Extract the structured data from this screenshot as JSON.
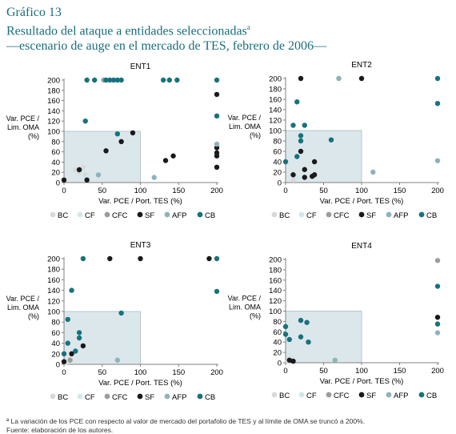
{
  "figure_label": "Gráfico 13",
  "title_line1": "Resultado del ataque a entidades seleccionadas",
  "title_mark": "a",
  "title_line2": "—escenario de auge en el mercado de TES, febrero de 2006—",
  "footnote": "ª La variación de los PCE con respecto al valor de mercado del portafolio de TES y al límite de OMA se truncó a 200%.",
  "source": "Fuente: elaboración de los autores.",
  "colors": {
    "BC": "#d9d9d9",
    "CF": "#cfe8ea",
    "CFC": "#9c9c9c",
    "SF": "#1a1a1a",
    "AFP": "#8fb3bd",
    "CB": "#16737d",
    "region": "#dce7ec",
    "axis": "#808080"
  },
  "chart_data": [
    {
      "type": "scatter",
      "title": "ENT1",
      "xlabel": "Var. PCE / Port. TES (%)",
      "ylabel": [
        "Var. PCE /",
        "Lim. OMA",
        "(%)"
      ],
      "xticks": [
        0,
        50,
        100,
        150,
        200
      ],
      "yticks": [
        0,
        20,
        40,
        60,
        80,
        100,
        120,
        140,
        160,
        180,
        200
      ],
      "xlim": [
        0,
        200
      ],
      "ylim": [
        0,
        200
      ],
      "shaded_region": {
        "x": [
          0,
          100
        ],
        "y": [
          0,
          100
        ]
      },
      "legend": [
        "BC",
        "CF",
        "CFC",
        "SF",
        "AFP",
        "CB"
      ],
      "series": [
        {
          "name": "BC",
          "points": [
            [
              15,
              25
            ],
            [
              20,
              20
            ],
            [
              25,
              30
            ],
            [
              28,
              15
            ]
          ]
        },
        {
          "name": "CF",
          "points": [
            [
              22,
              22
            ],
            [
              32,
              12
            ]
          ]
        },
        {
          "name": "CFC",
          "points": [
            [
              52,
              200
            ]
          ]
        },
        {
          "name": "SF",
          "points": [
            [
              0,
              5
            ],
            [
              20,
              25
            ],
            [
              30,
              5
            ],
            [
              55,
              62
            ],
            [
              75,
              80
            ],
            [
              90,
              97
            ],
            [
              133,
              43
            ],
            [
              143,
              52
            ],
            [
              200,
              172
            ],
            [
              200,
              68
            ],
            [
              200,
              58
            ],
            [
              200,
              52
            ],
            [
              200,
              30
            ]
          ]
        },
        {
          "name": "AFP",
          "points": [
            [
              45,
              15
            ],
            [
              118,
              10
            ],
            [
              200,
              75
            ]
          ]
        },
        {
          "name": "CB",
          "points": [
            [
              28,
              120
            ],
            [
              30,
              200
            ],
            [
              40,
              200
            ],
            [
              55,
              200
            ],
            [
              60,
              200
            ],
            [
              65,
              200
            ],
            [
              70,
              200
            ],
            [
              75,
              200
            ],
            [
              70,
              95
            ],
            [
              130,
              200
            ],
            [
              138,
              200
            ],
            [
              148,
              200
            ],
            [
              200,
              200
            ],
            [
              200,
              130
            ]
          ]
        }
      ]
    },
    {
      "type": "scatter",
      "title": "ENT2",
      "xlabel": "Var. PCE / Port. TES (%)",
      "ylabel": [
        "Var. PCE /",
        "Lim. OMA",
        "(%)"
      ],
      "xticks": [
        0,
        50,
        100,
        150,
        200
      ],
      "yticks": [
        0,
        20,
        40,
        60,
        80,
        100,
        120,
        140,
        160,
        180,
        200
      ],
      "xlim": [
        0,
        200
      ],
      "ylim": [
        0,
        200
      ],
      "shaded_region": {
        "x": [
          0,
          100
        ],
        "y": [
          0,
          100
        ]
      },
      "legend": [
        "BC",
        "CF",
        "CFC",
        "SF",
        "AFP",
        "CB"
      ],
      "series": [
        {
          "name": "BC",
          "points": [
            [
              10,
              5
            ]
          ]
        },
        {
          "name": "CF",
          "points": [
            [
              15,
              10
            ]
          ]
        },
        {
          "name": "CFC",
          "points": [
            [
              70,
              200
            ]
          ]
        },
        {
          "name": "SF",
          "points": [
            [
              10,
              15
            ],
            [
              20,
              200
            ],
            [
              20,
              60
            ],
            [
              25,
              10
            ],
            [
              25,
              25
            ],
            [
              35,
              12
            ],
            [
              38,
              15
            ],
            [
              38,
              40
            ],
            [
              100,
              200
            ]
          ]
        },
        {
          "name": "AFP",
          "points": [
            [
              70,
              200
            ],
            [
              115,
              20
            ],
            [
              200,
              42
            ]
          ]
        },
        {
          "name": "CB",
          "points": [
            [
              0,
              40
            ],
            [
              10,
              110
            ],
            [
              15,
              155
            ],
            [
              20,
              80
            ],
            [
              20,
              90
            ],
            [
              25,
              110
            ],
            [
              15,
              50
            ],
            [
              60,
              82
            ],
            [
              200,
              200
            ],
            [
              200,
              152
            ]
          ]
        }
      ]
    },
    {
      "type": "scatter",
      "title": "ENT3",
      "xlabel": "Var. PCE / Port. TES (%)",
      "ylabel": [
        "Var. PCE /",
        "Lim. OMA",
        "(%)"
      ],
      "xticks": [
        0,
        50,
        100,
        150,
        200
      ],
      "yticks": [
        0,
        20,
        40,
        60,
        80,
        100,
        120,
        140,
        160,
        180,
        200
      ],
      "xlim": [
        0,
        200
      ],
      "ylim": [
        0,
        200
      ],
      "shaded_region": {
        "x": [
          0,
          100
        ],
        "y": [
          0,
          100
        ]
      },
      "legend": [
        "BC",
        "CF",
        "CFC",
        "SF",
        "AFP",
        "CB"
      ],
      "series": [
        {
          "name": "BC",
          "points": [
            [
              2,
              3
            ]
          ]
        },
        {
          "name": "CF",
          "points": [
            [
              5,
              5
            ]
          ]
        },
        {
          "name": "CFC",
          "points": [
            [
              8,
              8
            ]
          ]
        },
        {
          "name": "SF",
          "points": [
            [
              0,
              5
            ],
            [
              10,
              20
            ],
            [
              25,
              35
            ],
            [
              60,
              200
            ],
            [
              100,
              200
            ],
            [
              190,
              200
            ]
          ]
        },
        {
          "name": "AFP",
          "points": [
            [
              70,
              8
            ]
          ]
        },
        {
          "name": "CB",
          "points": [
            [
              0,
              20
            ],
            [
              5,
              85
            ],
            [
              5,
              40
            ],
            [
              10,
              140
            ],
            [
              15,
              25
            ],
            [
              20,
              50
            ],
            [
              20,
              60
            ],
            [
              25,
              200
            ],
            [
              75,
              97
            ],
            [
              200,
              200
            ],
            [
              200,
              138
            ]
          ]
        }
      ]
    },
    {
      "type": "scatter",
      "title": "ENT4",
      "xlabel": "Var. PCE / Port. TES (%)",
      "ylabel": [
        "Var. PCE /",
        "Lim. OMA",
        "(%)"
      ],
      "xticks": [
        0,
        50,
        100,
        150,
        200
      ],
      "yticks": [
        0,
        20,
        40,
        60,
        80,
        100,
        120,
        140,
        160,
        180,
        200
      ],
      "xlim": [
        0,
        200
      ],
      "ylim": [
        0,
        200
      ],
      "shaded_region": {
        "x": [
          0,
          100
        ],
        "y": [
          0,
          100
        ]
      },
      "legend": [
        "BC",
        "CF",
        "CFC",
        "SF",
        "AFP",
        "CB"
      ],
      "series": [
        {
          "name": "BC",
          "points": [
            [
              3,
              3
            ],
            [
              8,
              8
            ]
          ]
        },
        {
          "name": "CF",
          "points": [
            [
              5,
              12
            ],
            [
              10,
              5
            ]
          ]
        },
        {
          "name": "CFC",
          "points": [
            [
              200,
              198
            ]
          ]
        },
        {
          "name": "SF",
          "points": [
            [
              5,
              5
            ],
            [
              10,
              3
            ],
            [
              200,
              88
            ]
          ]
        },
        {
          "name": "AFP",
          "points": [
            [
              65,
              5
            ],
            [
              200,
              58
            ]
          ]
        },
        {
          "name": "CB",
          "points": [
            [
              0,
              70
            ],
            [
              0,
              55
            ],
            [
              5,
              45
            ],
            [
              20,
              82
            ],
            [
              20,
              50
            ],
            [
              28,
              78
            ],
            [
              30,
              40
            ],
            [
              200,
              148
            ],
            [
              200,
              75
            ]
          ]
        }
      ]
    }
  ]
}
